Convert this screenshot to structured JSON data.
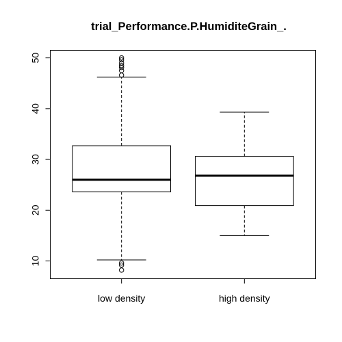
{
  "chart_data": {
    "type": "boxplot",
    "title": "trial_Performance.P.HumiditeGrain_.",
    "xlabel": "",
    "ylabel": "",
    "ylim": [
      6.5,
      51.5
    ],
    "yticks": [
      10,
      20,
      30,
      40,
      50
    ],
    "categories": [
      "low density",
      "high density"
    ],
    "boxes": [
      {
        "category": "low density",
        "whisker_low": 10.2,
        "q1": 23.6,
        "median": 26.0,
        "q3": 32.7,
        "whisker_high": 46.2,
        "outliers": [
          9.6,
          9.2,
          8.2,
          46.6,
          47.5,
          48.1,
          48.5,
          49.0,
          49.6,
          50.0
        ]
      },
      {
        "category": "high density",
        "whisker_low": 15.0,
        "q1": 20.9,
        "median": 26.8,
        "q3": 30.6,
        "whisker_high": 39.3,
        "outliers": []
      }
    ],
    "colors": {
      "box_fill": "#ffffff",
      "stroke": "#000000"
    },
    "grid": false,
    "legend": "none"
  }
}
